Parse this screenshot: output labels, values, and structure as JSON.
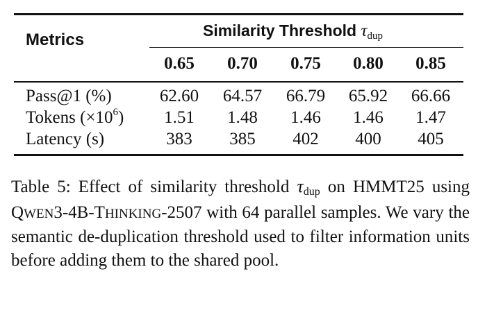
{
  "table": {
    "metrics_header": "Metrics",
    "group_header": "Similarity Threshold",
    "group_symbol": "τ",
    "group_subscript": "dup",
    "columns": [
      "0.65",
      "0.70",
      "0.75",
      "0.80",
      "0.85"
    ],
    "rows": [
      {
        "label": "Pass@1 (%)",
        "values": [
          "62.60",
          "64.57",
          "66.79",
          "65.92",
          "66.66"
        ]
      },
      {
        "label_prefix": "Tokens (×10",
        "label_sup": "6",
        "label_suffix": ")",
        "values": [
          "1.51",
          "1.48",
          "1.46",
          "1.46",
          "1.47"
        ]
      },
      {
        "label": "Latency (s)",
        "values": [
          "383",
          "385",
          "402",
          "400",
          "405"
        ]
      }
    ]
  },
  "caption": {
    "part1": "Table 5: Effect of similarity threshold ",
    "symbol": "τ",
    "subscript": "dup",
    "part2": " on HMMT25 using ",
    "model_q": "Q",
    "model_wen": "WEN",
    "model_mid": "3-4B-T",
    "model_hinking": "HINKING",
    "model_tail": "-2507",
    "part3": " with 64 parallel samples. We vary the semantic de-duplication threshold used to filter information units before adding them to the shared pool."
  }
}
